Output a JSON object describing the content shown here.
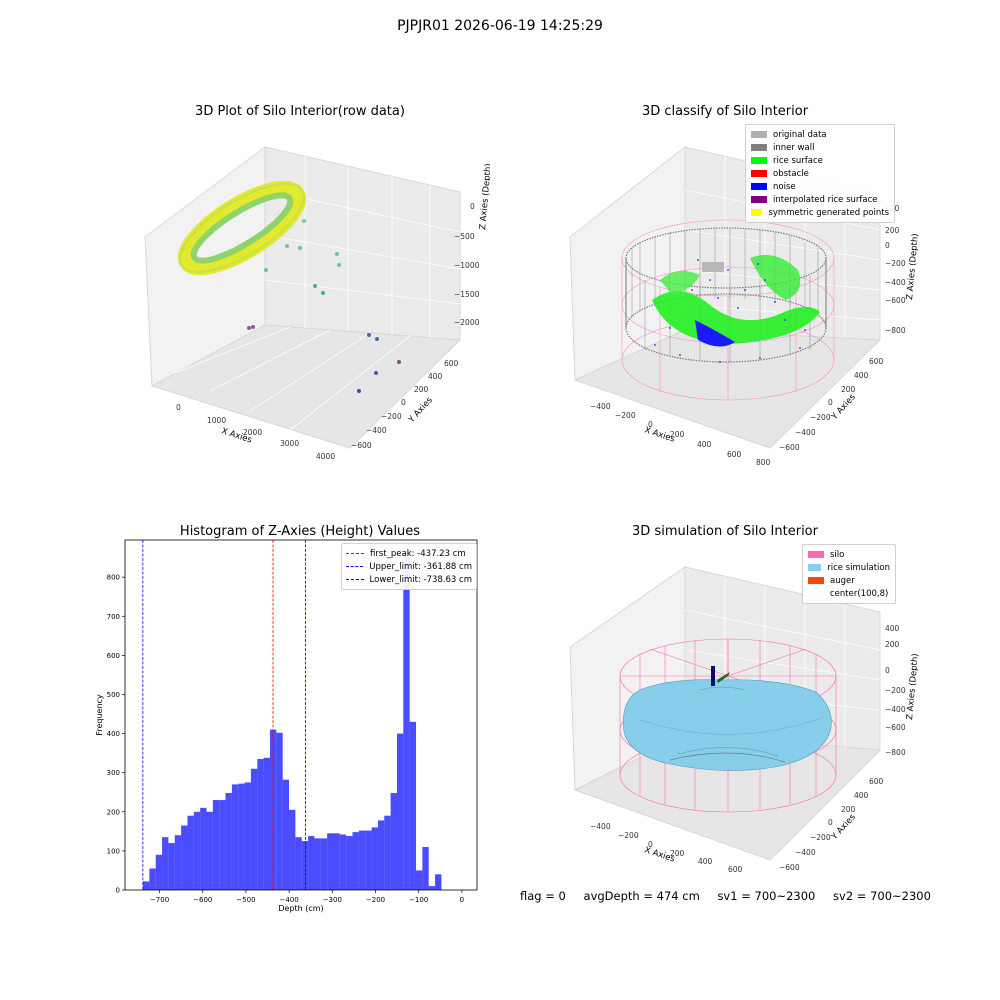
{
  "figure_title": "PJPJR01 2026-06-19 14:25:29",
  "status": {
    "flag": "flag = 0",
    "avg_depth": "avgDepth = 474 cm",
    "sv1": "sv1 = 700~2300",
    "sv2": "sv2 = 700~2300"
  },
  "chart_data": [
    {
      "type": "scatter",
      "title": "3D Plot of Silo Interior(row data)",
      "xlabel": "X Axies",
      "ylabel": "Y Axies",
      "zlabel": "Z Axies (Depth)",
      "x_ticks": [
        "0",
        "1000",
        "2000",
        "3000",
        "4000"
      ],
      "y_ticks": [
        "600",
        "400",
        "200",
        "0",
        "−200",
        "−400",
        "−600"
      ],
      "z_ticks": [
        "0",
        "−500",
        "−1000",
        "−1500",
        "−2000"
      ],
      "colors": {
        "ring_outer": "#e8ec2a",
        "ring_inner": "#7ed06a",
        "points": "#5fc79a",
        "far_points": "#5a5aa5"
      }
    },
    {
      "type": "scatter",
      "title": "3D classify of Silo Interior",
      "xlabel": "X Axies",
      "ylabel": "Y Axies",
      "zlabel": "Z Axies (Depth)",
      "x_ticks": [
        "−400",
        "−200",
        "0",
        "200",
        "400",
        "600",
        "800"
      ],
      "y_ticks": [
        "600",
        "400",
        "200",
        "0",
        "−200",
        "−400",
        "−600"
      ],
      "z_ticks": [
        "400",
        "200",
        "0",
        "−200",
        "−400",
        "−600",
        "−800"
      ],
      "legend": [
        {
          "label": "original data",
          "color": "#b0b0b0"
        },
        {
          "label": "inner wall",
          "color": "#808080"
        },
        {
          "label": "rice surface",
          "color": "#00ff00"
        },
        {
          "label": "obstacle",
          "color": "#ff0000"
        },
        {
          "label": "noise",
          "color": "#0000ff"
        },
        {
          "label": "interpolated rice surface",
          "color": "#800080"
        },
        {
          "label": "symmetric generated points",
          "color": "#ffff00"
        }
      ]
    },
    {
      "type": "bar",
      "title": "Histogram of Z-Axies (Height) Values",
      "xlabel": "Depth (cm)",
      "ylabel": "Frequency",
      "xlim": [
        -780,
        35
      ],
      "ylim": [
        0,
        895
      ],
      "x_ticks": [
        -700,
        -600,
        -500,
        -400,
        -300,
        -200,
        -100,
        0
      ],
      "x_tick_labels": [
        "−700",
        "−600",
        "−500",
        "−400",
        "−300",
        "−200",
        "−100",
        "0"
      ],
      "y_ticks": [
        0,
        100,
        200,
        300,
        400,
        500,
        600,
        700,
        800
      ],
      "y_tick_labels": [
        "0",
        "100",
        "200",
        "300",
        "400",
        "500",
        "600",
        "700",
        "800"
      ],
      "bar_color": "#0000ff",
      "bin_width": 14.7,
      "bin_start": -753,
      "values": [
        0,
        22,
        55,
        90,
        135,
        120,
        140,
        165,
        190,
        200,
        210,
        200,
        230,
        230,
        248,
        270,
        272,
        275,
        310,
        335,
        338,
        410,
        402,
        282,
        205,
        135,
        125,
        138,
        132,
        132,
        145,
        145,
        142,
        138,
        148,
        152,
        152,
        160,
        178,
        190,
        248,
        400,
        870,
        430,
        50,
        110,
        10,
        40
      ],
      "lines": [
        {
          "label": "first_peak: -437.23 cm",
          "x": -437.23,
          "color": "#ff0000"
        },
        {
          "label": "Upper_limit: -361.88 cm",
          "x": -361.88,
          "color": "#0000ff"
        },
        {
          "label": "Lower_limit: -738.63 cm",
          "x": -738.63,
          "color": "#0000ff"
        }
      ]
    },
    {
      "type": "area",
      "title": "3D simulation of Silo Interior",
      "xlabel": "X Axies",
      "ylabel": "Y Axies",
      "zlabel": "Z Axies (Depth)",
      "x_ticks": [
        "−400",
        "−200",
        "0",
        "200",
        "400",
        "600"
      ],
      "y_ticks": [
        "600",
        "400",
        "200",
        "0",
        "−200",
        "−400",
        "−600"
      ],
      "z_ticks": [
        "400",
        "200",
        "0",
        "−200",
        "−400",
        "−600",
        "−800"
      ],
      "legend": [
        {
          "label": "silo",
          "color": "#ff69b4"
        },
        {
          "label": "rice simulation",
          "color": "#87ceeb"
        },
        {
          "label": "auger",
          "color": "#ff4500"
        },
        {
          "label": "center(100,8)",
          "color": ""
        }
      ]
    }
  ]
}
